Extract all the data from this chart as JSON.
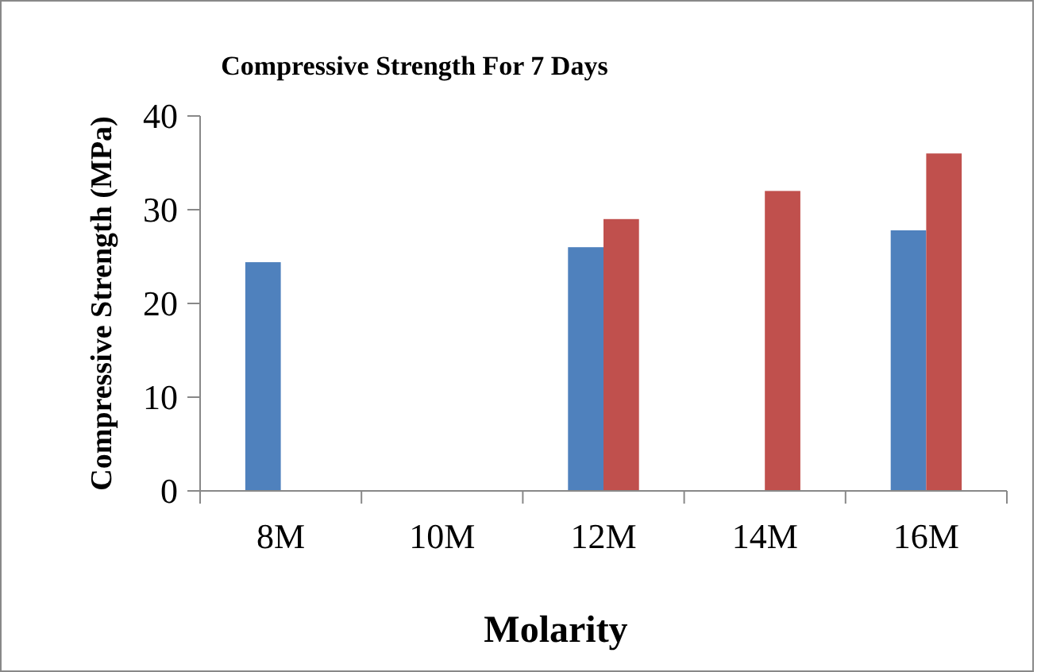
{
  "chart_data": {
    "type": "bar",
    "title": "Compressive Strength For 7 Days",
    "xlabel": "Molarity",
    "ylabel": "Compressive Strength (MPa)",
    "categories": [
      "8M",
      "10M",
      "12M",
      "14M",
      "16M"
    ],
    "series": [
      {
        "color": "#4f81bd",
        "values": [
          24.4,
          null,
          26,
          null,
          27.8
        ]
      },
      {
        "color": "#c0504d",
        "values": [
          null,
          null,
          29,
          32,
          36
        ]
      }
    ],
    "ylim": [
      0,
      40
    ],
    "yticks": [
      0,
      10,
      20,
      30,
      40
    ],
    "grid": false
  }
}
